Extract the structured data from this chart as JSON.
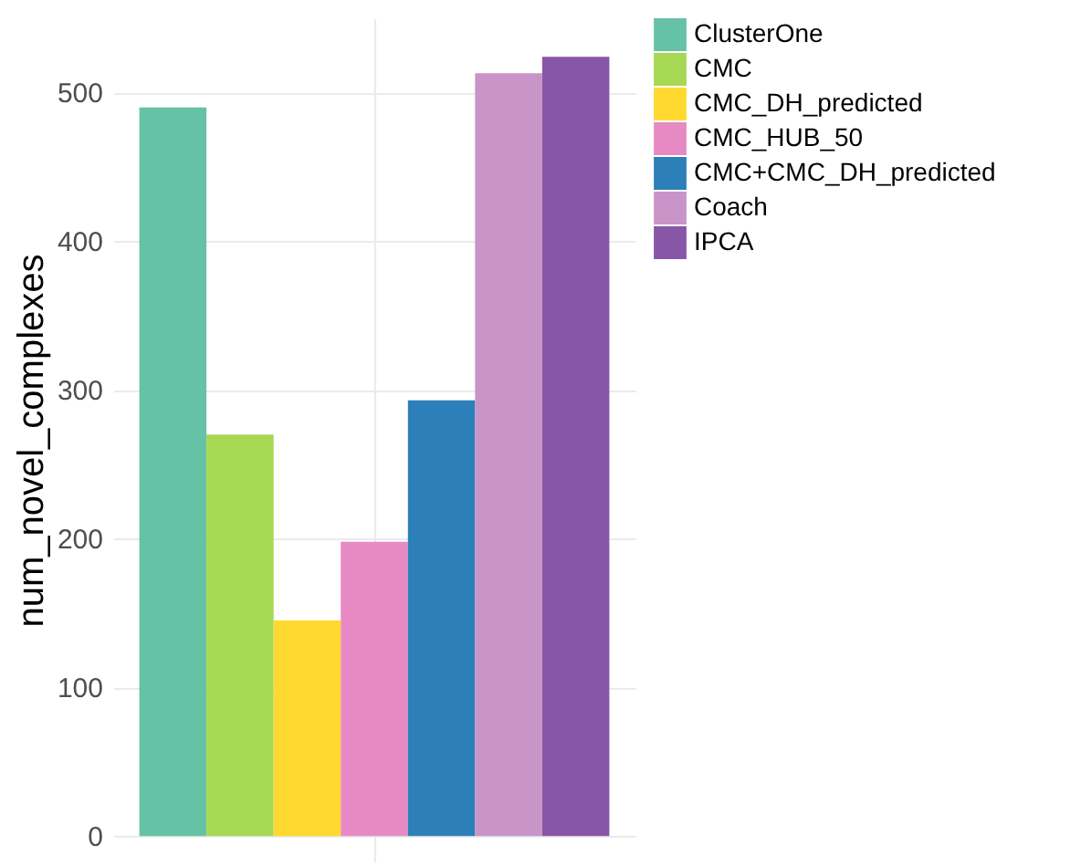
{
  "chart_data": {
    "type": "bar",
    "ylabel": "num_novel_complexes",
    "categories": [
      null
    ],
    "series": [
      {
        "name": "ClusterOne",
        "color": "#66c2a5",
        "values": [
          490
        ]
      },
      {
        "name": "CMC",
        "color": "#a6d854",
        "values": [
          270
        ]
      },
      {
        "name": "CMC_DH_predicted",
        "color": "#ffd92f",
        "values": [
          145
        ]
      },
      {
        "name": "CMC_HUB_50",
        "color": "#e78ac3",
        "values": [
          198
        ]
      },
      {
        "name": "CMC+CMC_DH_predicted",
        "color": "#2c7fb8",
        "values": [
          293
        ]
      },
      {
        "name": "Coach",
        "color": "#c994c7",
        "values": [
          513
        ]
      },
      {
        "name": "IPCA",
        "color": "#8856a7",
        "values": [
          524
        ]
      }
    ],
    "ylim": [
      -17,
      550
    ],
    "yticks": [
      0,
      100,
      200,
      300,
      400,
      500
    ],
    "grid": true,
    "legend": "right"
  }
}
